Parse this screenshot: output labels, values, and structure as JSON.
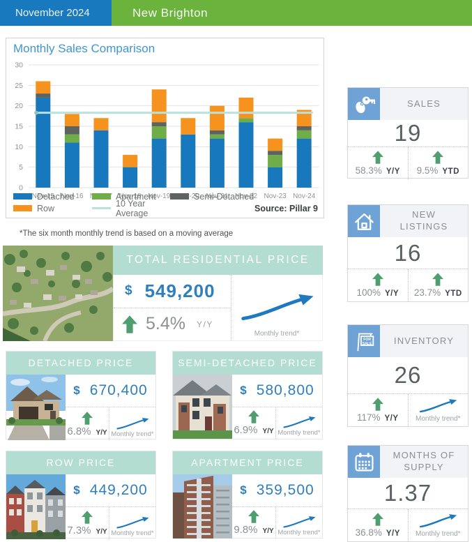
{
  "header": {
    "date_label": "November 2024",
    "community_name": "New Brighton"
  },
  "chart_panel": {
    "title": "Monthly Sales Comparison",
    "source": "Source: Pillar 9"
  },
  "chart_data": {
    "type": "bar",
    "stacked": true,
    "title": "Monthly Sales Comparison",
    "categories": [
      "Nov-15",
      "Nov-16",
      "Nov-17",
      "Nov-18",
      "Nov-19",
      "Nov-20",
      "Nov-21",
      "Nov-22",
      "Nov-23",
      "Nov-24"
    ],
    "series": [
      {
        "name": "Detached",
        "color": "#1878BE",
        "values": [
          22,
          11,
          14,
          5,
          12,
          13,
          12,
          16,
          5,
          12
        ]
      },
      {
        "name": "Apartment",
        "color": "#70AD47",
        "values": [
          0,
          2,
          0,
          0,
          3,
          0,
          1,
          1,
          3,
          2
        ]
      },
      {
        "name": "Semi-Detached",
        "color": "#5C6360",
        "values": [
          1,
          2,
          0,
          0,
          1,
          0,
          1,
          0,
          1,
          1
        ]
      },
      {
        "name": "Row",
        "color": "#F6921E",
        "values": [
          3,
          3,
          3,
          3,
          8,
          4,
          6,
          5,
          3,
          4
        ]
      }
    ],
    "totals": [
      26,
      18,
      17,
      8,
      24,
      17,
      20,
      22,
      12,
      19
    ],
    "average_line": {
      "label": "10 Year Average",
      "value": 18.3,
      "color": "#B8E2DC"
    },
    "ylim": [
      0,
      30
    ],
    "yticks": [
      0,
      5,
      10,
      15,
      20,
      25,
      30
    ],
    "grid": true,
    "legend_position": "bottom",
    "source": "Source: Pillar 9"
  },
  "footnote": "*The six month monthly trend is based on a moving average",
  "stat_cards": [
    {
      "title": "SALES",
      "icon": "keys-icon",
      "value": "19",
      "metric_1": {
        "pct": "58.3%",
        "label": "Y/Y",
        "direction": "up"
      },
      "metric_2": {
        "pct": "9.5%",
        "label": "YTD",
        "direction": "up"
      }
    },
    {
      "title": "NEW LISTINGS",
      "icon": "house-icon",
      "value": "16",
      "metric_1": {
        "pct": "100%",
        "label": "Y/Y",
        "direction": "up"
      },
      "metric_2": {
        "pct": "23.7%",
        "label": "YTD",
        "direction": "up"
      }
    },
    {
      "title": "INVENTORY",
      "icon": "for-sale-sign-icon",
      "value": "26",
      "metric_1": {
        "pct": "117%",
        "label": "Y/Y",
        "direction": "up"
      },
      "trend_label": "Monthly trend*"
    },
    {
      "title": "MONTHS OF SUPPLY",
      "icon": "calendar-icon",
      "value": "1.37",
      "metric_1": {
        "pct": "36.8%",
        "label": "Y/Y",
        "direction": "up"
      },
      "trend_label": "Monthly trend*"
    }
  ],
  "price_cards": {
    "total": {
      "title": "TOTAL RESIDENTIAL PRICE",
      "currency": "$",
      "value": "549,200",
      "pct": "5.4%",
      "pct_label": "Y/Y",
      "trend_label": "Monthly trend*",
      "photo": "aerial-neighborhood-photo"
    },
    "detached": {
      "title": "DETACHED PRICE",
      "currency": "$",
      "value": "670,400",
      "pct": "6.8%",
      "pct_label": "Y/Y",
      "trend_label": "Monthly trend*",
      "photo": "detached-house-photo"
    },
    "semi_detached": {
      "title": "SEMI-DETACHED PRICE",
      "currency": "$",
      "value": "580,800",
      "pct": "6.9%",
      "pct_label": "Y/Y",
      "trend_label": "Monthly trend*",
      "photo": "semi-detached-house-photo"
    },
    "row": {
      "title": "ROW PRICE",
      "currency": "$",
      "value": "449,200",
      "pct": "7.3%",
      "pct_label": "Y/Y",
      "trend_label": "Monthly trend*",
      "photo": "row-houses-photo"
    },
    "apartment": {
      "title": "APARTMENT PRICE",
      "currency": "$",
      "value": "359,500",
      "pct": "9.8%",
      "pct_label": "Y/Y",
      "trend_label": "Monthly trend*",
      "photo": "apartment-tower-photo"
    }
  },
  "colors": {
    "header_blue": "#1879BF",
    "header_green": "#6CB33E",
    "title_blue": "#3E97D1",
    "mint_header": "#B2DDD0",
    "price_blue": "#2F7FBE",
    "up_arrow_green": "#4F9E6F",
    "trend_blue": "#1E79BE",
    "stat_icon_blue": "#6FA3D6"
  }
}
